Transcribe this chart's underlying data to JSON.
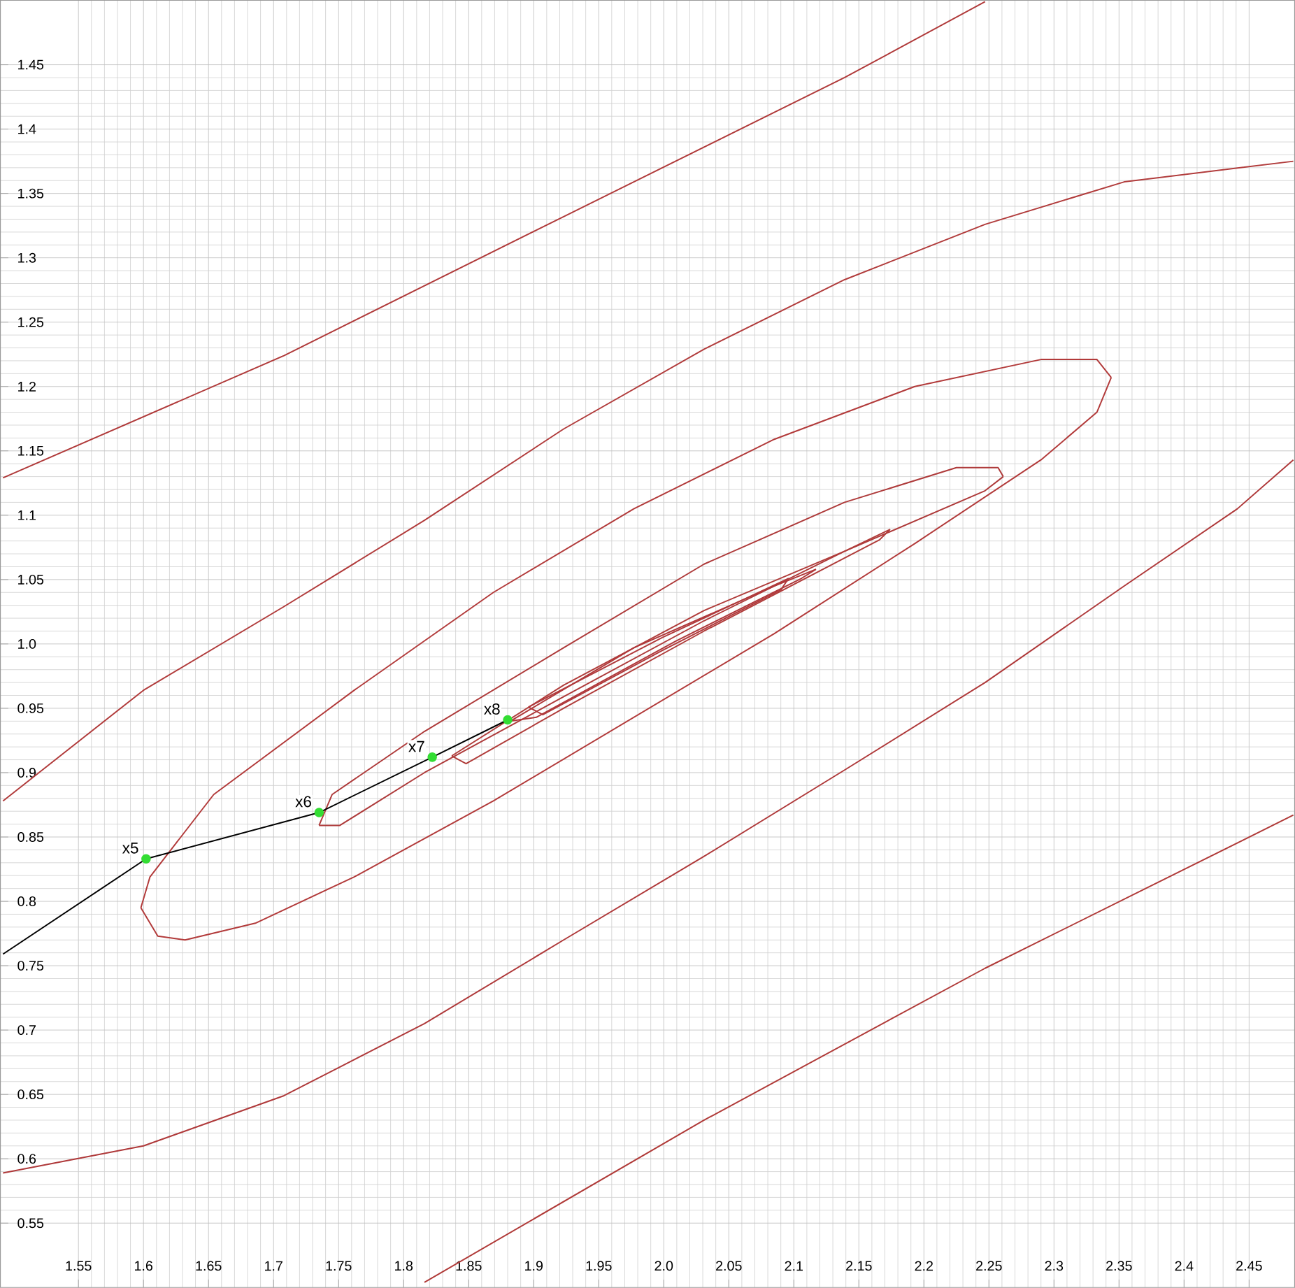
{
  "chart_data": {
    "type": "line",
    "xlim": [
      1.49,
      2.485
    ],
    "ylim": [
      0.5,
      1.5
    ],
    "xticks": [
      1.55,
      1.6,
      1.65,
      1.7,
      1.75,
      1.8,
      1.85,
      1.9,
      1.95,
      {
        "value": 2,
        "label": "2.0"
      },
      2.05,
      2.1,
      2.15,
      2.2,
      2.25,
      2.3,
      2.35,
      2.4,
      2.45
    ],
    "yticks": [
      0.55,
      0.6,
      0.65,
      0.7,
      0.75,
      0.8,
      0.85,
      0.9,
      0.95,
      {
        "value": 1,
        "label": "1.0"
      },
      1.05,
      1.1,
      1.15,
      1.2,
      1.25,
      1.3,
      1.35,
      1.4,
      1.45
    ],
    "grid": true,
    "series": [
      {
        "color": "#b03a3a",
        "x": [
          1.492,
          1.708,
          1.923,
          2.139,
          2.247
        ],
        "values": [
          1.129,
          1.224,
          1.332,
          1.44,
          1.499
        ]
      },
      {
        "color": "#b13b3b",
        "x": [
          1.492,
          1.6,
          1.708,
          1.816,
          1.923,
          2.031,
          2.139,
          2.247,
          2.354,
          2.484
        ],
        "values": [
          0.878,
          0.964,
          1.029,
          1.096,
          1.167,
          1.229,
          1.283,
          1.326,
          1.359,
          1.375
        ]
      },
      {
        "color": "#af393a",
        "x": [
          1.492,
          1.6,
          1.708,
          1.816,
          1.923,
          2.031,
          2.139,
          2.247,
          2.354,
          2.441,
          2.484
        ],
        "values": [
          0.589,
          0.61,
          0.649,
          0.705,
          0.77,
          0.835,
          0.902,
          0.97,
          1.045,
          1.105,
          1.143
        ]
      },
      {
        "color": "#b23a3a",
        "x": [
          1.598,
          1.605,
          1.654,
          1.762,
          1.869,
          1.977,
          2.085,
          2.193,
          2.29,
          2.333,
          2.344
        ],
        "values": [
          0.795,
          0.819,
          0.883,
          0.964,
          1.04,
          1.105,
          1.159,
          1.2,
          1.221,
          1.221,
          1.207
        ]
      },
      {
        "color": "#b23a3a",
        "x": [
          1.598,
          1.611,
          1.632,
          1.686,
          1.762,
          1.869,
          1.977,
          2.085,
          2.193,
          2.29,
          2.333,
          2.344
        ],
        "values": [
          0.795,
          0.773,
          0.77,
          0.783,
          0.819,
          0.878,
          0.943,
          1.008,
          1.078,
          1.143,
          1.18,
          1.207
        ]
      },
      {
        "color": "#ae3a3a",
        "x": [
          1.735,
          1.745,
          1.816,
          1.923,
          2.031,
          2.139,
          2.225,
          2.257,
          2.261
        ],
        "values": [
          0.859,
          0.883,
          0.932,
          0.997,
          1.062,
          1.11,
          1.137,
          1.137,
          1.13
        ]
      },
      {
        "color": "#ae3a3a",
        "x": [
          1.735,
          1.751,
          1.816,
          1.923,
          2.031,
          2.139,
          2.247,
          2.261
        ],
        "values": [
          0.859,
          0.859,
          0.9,
          0.959,
          1.018,
          1.072,
          1.119,
          1.13
        ]
      },
      {
        "color": "#b03c3a",
        "x": [
          1.837,
          1.923,
          2.031,
          2.139,
          2.174
        ],
        "values": [
          0.913,
          0.968,
          1.026,
          1.072,
          1.089
        ]
      },
      {
        "color": "#b03c3a",
        "x": [
          1.837,
          1.848,
          1.923,
          2.031,
          2.166,
          2.174
        ],
        "values": [
          0.913,
          0.907,
          0.95,
          1.01,
          1.081,
          1.089
        ]
      },
      {
        "color": "#b0383a",
        "x": [
          1.882,
          1.977,
          2.085,
          2.117
        ],
        "values": [
          0.94,
          0.997,
          1.045,
          1.058
        ]
      },
      {
        "color": "#b0383a",
        "x": [
          1.882,
          1.902,
          2.009,
          2.106,
          2.117
        ],
        "values": [
          0.94,
          0.943,
          1.002,
          1.051,
          1.058
        ]
      },
      {
        "color": "#b03a3c",
        "x": [
          1.896,
          1.999,
          2.096
        ],
        "values": [
          0.951,
          1.005,
          1.051
        ]
      },
      {
        "color": "#b03a3c",
        "x": [
          1.896,
          1.907,
          1.999,
          2.09,
          2.096
        ],
        "values": [
          0.951,
          0.945,
          0.995,
          1.042,
          1.051
        ]
      },
      {
        "color": "#b03a38",
        "x": [
          1.816,
          2.031,
          2.247,
          2.484
        ],
        "values": [
          0.504,
          0.63,
          0.748,
          0.867
        ]
      },
      {
        "color": "#000000",
        "marker": "none",
        "x": [
          1.492,
          1.602,
          1.735,
          1.822,
          1.88
        ],
        "values": [
          0.759,
          0.833,
          0.869,
          0.912,
          0.941
        ]
      },
      {
        "type": "scatter",
        "color": "#33dd33",
        "marker": "circle",
        "x": [
          1.602,
          1.735,
          1.822,
          1.88
        ],
        "values": [
          0.833,
          0.869,
          0.912,
          0.941
        ]
      }
    ],
    "annotations": [
      {
        "text": "x5",
        "x": 1.602,
        "y": 0.833
      },
      {
        "text": "x6",
        "x": 1.735,
        "y": 0.869
      },
      {
        "text": "x7",
        "x": 1.822,
        "y": 0.912
      },
      {
        "text": "x8",
        "x": 1.88,
        "y": 0.941
      }
    ]
  }
}
